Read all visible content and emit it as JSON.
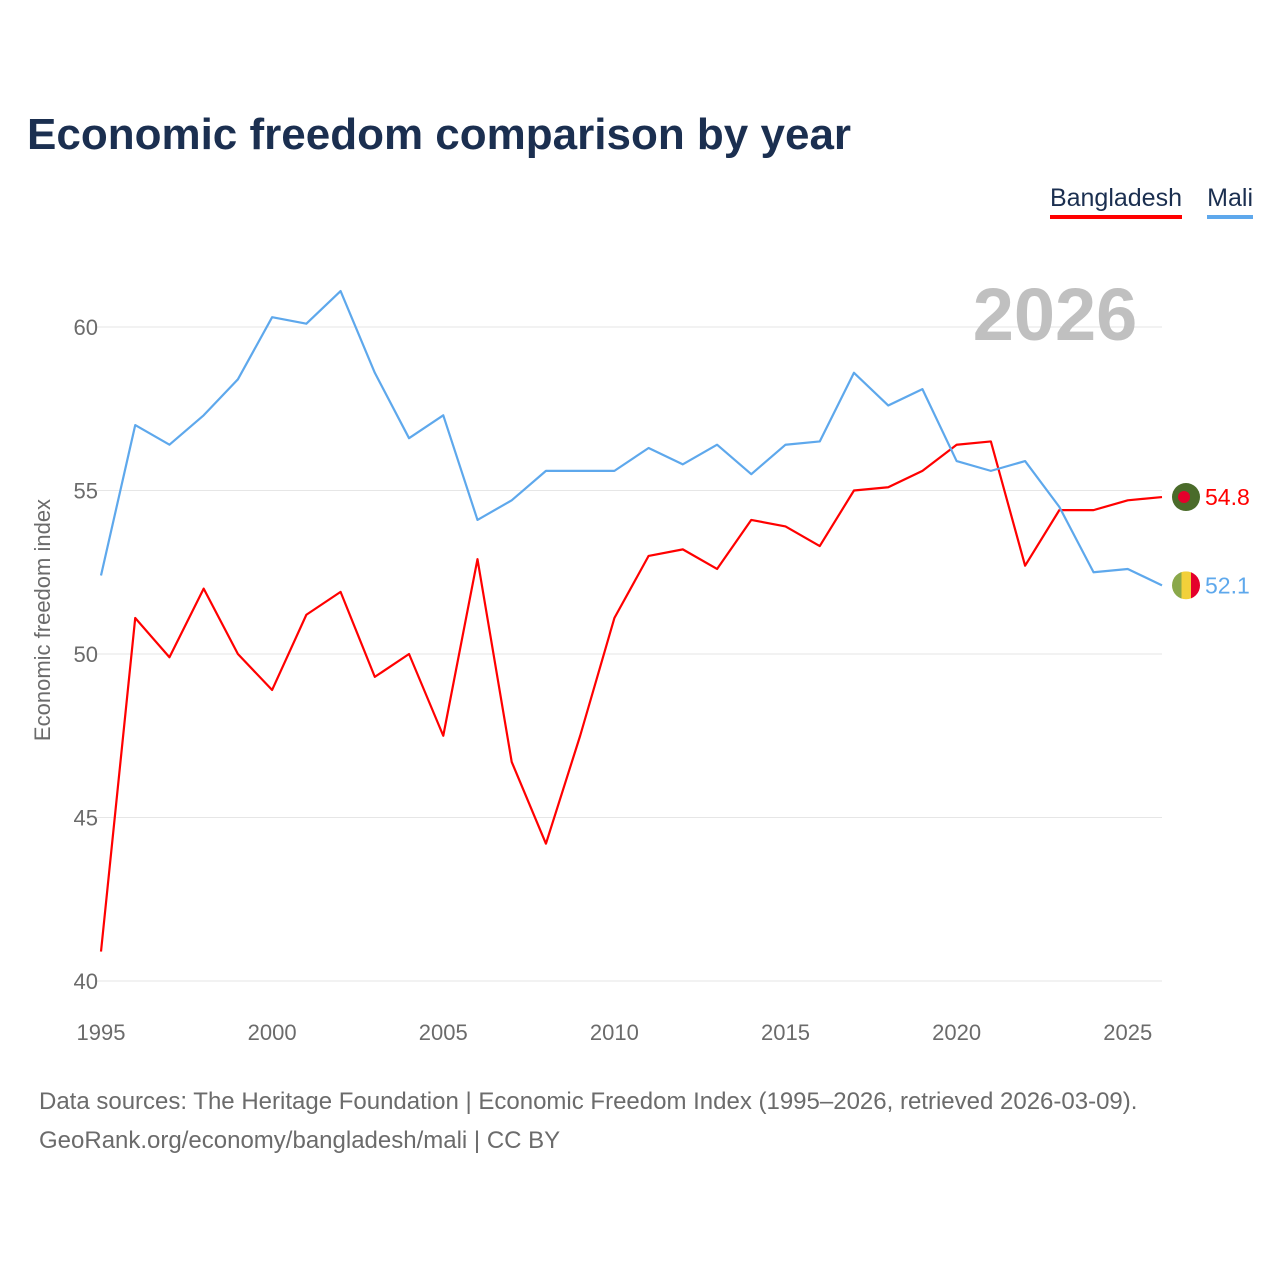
{
  "title": "Economic freedom comparison by year",
  "footer": {
    "line1": "Data sources: The Heritage Foundation | Economic Freedom Index (1995–2026, retrieved 2026-03-09).",
    "line2": "GeoRank.org/economy/bangladesh/mali | CC BY"
  },
  "chart_data": {
    "type": "line",
    "title": "Economic freedom comparison by year",
    "year_label": "2026",
    "xlabel": "",
    "ylabel": "Economic freedom index",
    "x": [
      1995,
      1996,
      1997,
      1998,
      1999,
      2000,
      2001,
      2002,
      2003,
      2004,
      2005,
      2006,
      2007,
      2008,
      2009,
      2010,
      2011,
      2012,
      2013,
      2014,
      2015,
      2016,
      2017,
      2018,
      2019,
      2020,
      2021,
      2022,
      2023,
      2024,
      2025,
      2026
    ],
    "xlim": [
      1995,
      2026
    ],
    "ylim": [
      40,
      62
    ],
    "xticks": [
      "1995",
      "2000",
      "2005",
      "2010",
      "2015",
      "2020",
      "2025"
    ],
    "yticks": [
      "40",
      "45",
      "50",
      "55",
      "60"
    ],
    "grid": true,
    "legend_position": "top-right",
    "series": [
      {
        "name": "Bangladesh",
        "color": "#ff0000",
        "end_label": "54.8",
        "flag": "bangladesh-flag-icon",
        "values": [
          40.9,
          51.1,
          49.9,
          52.0,
          50.0,
          48.9,
          51.2,
          51.9,
          49.3,
          50.0,
          47.5,
          52.9,
          46.7,
          44.2,
          47.5,
          51.1,
          53.0,
          53.2,
          52.6,
          54.1,
          53.9,
          53.3,
          55.0,
          55.1,
          55.6,
          56.4,
          56.5,
          52.7,
          54.4,
          54.4,
          54.7,
          54.8
        ]
      },
      {
        "name": "Mali",
        "color": "#5ea8ec",
        "end_label": "52.1",
        "flag": "mali-flag-icon",
        "values": [
          52.4,
          57.0,
          56.4,
          57.3,
          58.4,
          60.3,
          60.1,
          61.1,
          58.6,
          56.6,
          57.3,
          54.1,
          54.7,
          55.6,
          55.6,
          55.6,
          56.3,
          55.8,
          56.4,
          55.5,
          56.4,
          56.5,
          58.6,
          57.6,
          58.1,
          55.9,
          55.6,
          55.9,
          54.5,
          52.5,
          52.6,
          52.1
        ]
      }
    ]
  }
}
